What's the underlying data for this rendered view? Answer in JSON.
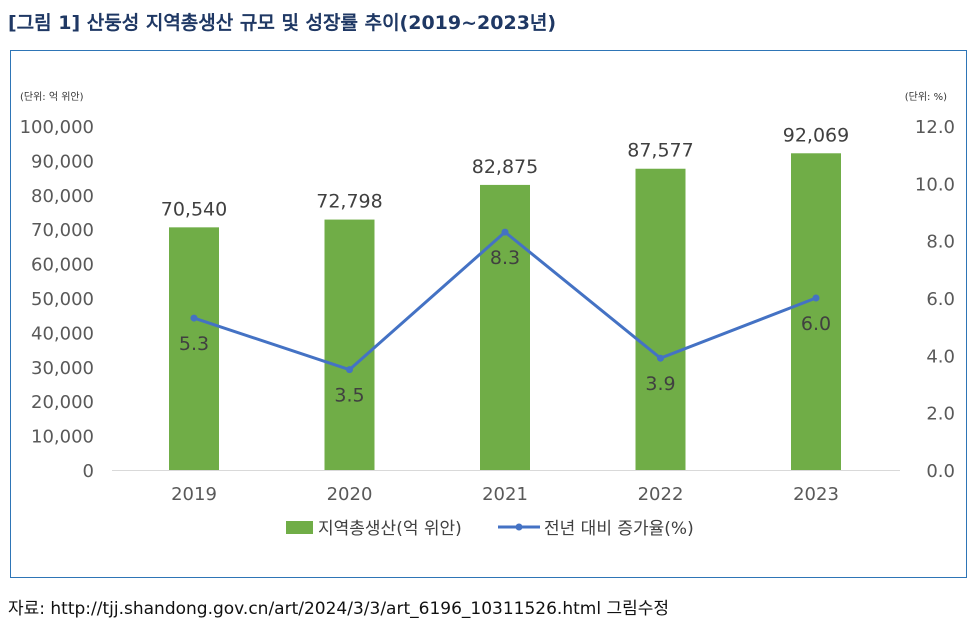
{
  "figure_label": "[그림 1]",
  "title_text": "산둥성 지역총생산 규모 및 성장률 추이(2019~2023년)",
  "source": "자료: http://tjj.shandong.gov.cn/art/2024/3/3/art_6196_10311526.html 그림수정",
  "colors": {
    "bar": "#70ad47",
    "line": "#4472c4",
    "frame": "#2e75b6",
    "title": "#1f3864"
  },
  "chart_data": {
    "type": "bar",
    "categories": [
      "2019",
      "2020",
      "2021",
      "2022",
      "2023"
    ],
    "series": [
      {
        "name": "지역총생산(억 위안)",
        "type": "bar",
        "axis": "left",
        "values": [
          70540,
          72798,
          82875,
          87577,
          92069
        ],
        "labels": [
          "70,540",
          "72,798",
          "82,875",
          "87,577",
          "92,069"
        ]
      },
      {
        "name": "전년 대비 증가율(%)",
        "type": "line",
        "axis": "right",
        "values": [
          5.3,
          3.5,
          8.3,
          3.9,
          6.0
        ],
        "labels": [
          "5.3",
          "3.5",
          "8.3",
          "3.9",
          "6.0"
        ]
      }
    ],
    "left_axis": {
      "unit_label": "(단위: 억 위안)",
      "ylim": [
        0,
        100000
      ],
      "ticks": [
        "0",
        "10,000",
        "20,000",
        "30,000",
        "40,000",
        "50,000",
        "60,000",
        "70,000",
        "80,000",
        "90,000",
        "100,000"
      ]
    },
    "right_axis": {
      "unit_label": "(단위: %)",
      "ylim": [
        0,
        12
      ],
      "ticks": [
        "0.0",
        "2.0",
        "4.0",
        "6.0",
        "8.0",
        "10.0",
        "12.0"
      ]
    },
    "legend_position": "bottom",
    "grid": false
  }
}
